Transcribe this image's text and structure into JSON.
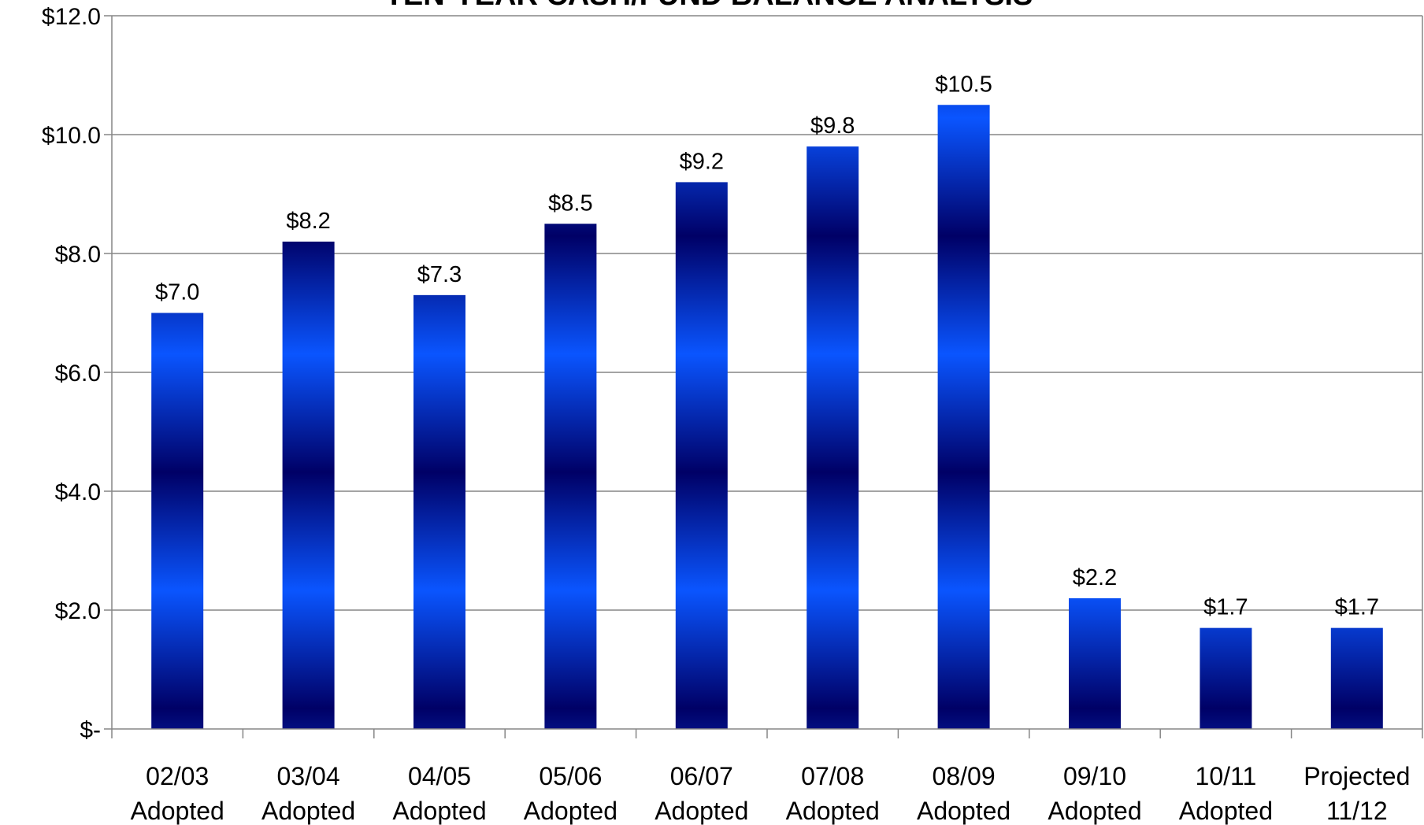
{
  "chart_data": {
    "type": "bar",
    "title": "TEN-YEAR CASH/FUND BALANCE ANALYSIS",
    "categories": [
      [
        "02/03",
        "Adopted"
      ],
      [
        "03/04",
        "Adopted"
      ],
      [
        "04/05",
        "Adopted"
      ],
      [
        "05/06",
        "Adopted"
      ],
      [
        "06/07",
        "Adopted"
      ],
      [
        "07/08",
        "Adopted"
      ],
      [
        "08/09",
        "Adopted"
      ],
      [
        "09/10",
        "Adopted"
      ],
      [
        "10/11",
        "Adopted"
      ],
      [
        "Projected",
        "11/12"
      ]
    ],
    "values": [
      7.0,
      8.2,
      7.3,
      8.5,
      9.2,
      9.8,
      10.5,
      2.2,
      1.7,
      1.7
    ],
    "data_labels": [
      "$7.0",
      "$8.2",
      "$7.3",
      "$8.5",
      "$9.2",
      "$9.8",
      "$10.5",
      "$2.2",
      "$1.7",
      "$1.7"
    ],
    "yticks": [
      0,
      2,
      4,
      6,
      8,
      10,
      12
    ],
    "ytick_labels": [
      "$-",
      "$2.0",
      "$4.0",
      "$6.0",
      "$8.0",
      "$10.0",
      "$12.0"
    ],
    "ylim": [
      0,
      12
    ],
    "xlabel": "",
    "ylabel": "",
    "grid": true,
    "legend": "none",
    "colors": {
      "bar_dark": "#000066",
      "bar_light": "#0a55ff",
      "grid": "#868686",
      "axis": "#868686"
    }
  }
}
